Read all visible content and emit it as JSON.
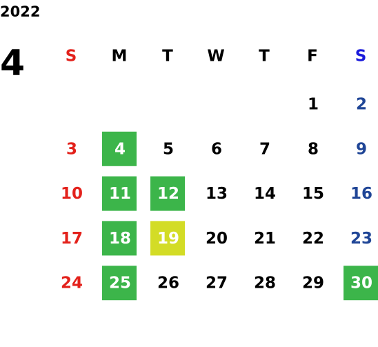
{
  "year": "2022",
  "month": "4",
  "weekdays": [
    "S",
    "M",
    "T",
    "W",
    "T",
    "F",
    "S"
  ],
  "weekday_colors": [
    "#e3211b",
    "#000000",
    "#000000",
    "#000000",
    "#000000",
    "#000000",
    "#1a1adb"
  ],
  "day_colors": [
    "#e3211b",
    "#000000",
    "#000000",
    "#000000",
    "#000000",
    "#000000",
    "#1f4596"
  ],
  "weeks": [
    [
      null,
      null,
      null,
      null,
      null,
      {
        "day": 1
      },
      {
        "day": 2
      }
    ],
    [
      {
        "day": 3
      },
      {
        "day": 4,
        "fill": "#3cb54a"
      },
      {
        "day": 5
      },
      {
        "day": 6
      },
      {
        "day": 7
      },
      {
        "day": 8
      },
      {
        "day": 9
      }
    ],
    [
      {
        "day": 10
      },
      {
        "day": 11,
        "fill": "#3cb54a"
      },
      {
        "day": 12,
        "fill": "#3cb54a"
      },
      {
        "day": 13
      },
      {
        "day": 14
      },
      {
        "day": 15
      },
      {
        "day": 16
      }
    ],
    [
      {
        "day": 17
      },
      {
        "day": 18,
        "fill": "#3cb54a"
      },
      {
        "day": 19,
        "fill": "#d3dc26"
      },
      {
        "day": 20
      },
      {
        "day": 21
      },
      {
        "day": 22
      },
      {
        "day": 23
      }
    ],
    [
      {
        "day": 24
      },
      {
        "day": 25,
        "fill": "#3cb54a"
      },
      {
        "day": 26
      },
      {
        "day": 27
      },
      {
        "day": 28
      },
      {
        "day": 29
      },
      {
        "day": 30,
        "fill": "#3cb54a"
      }
    ]
  ]
}
